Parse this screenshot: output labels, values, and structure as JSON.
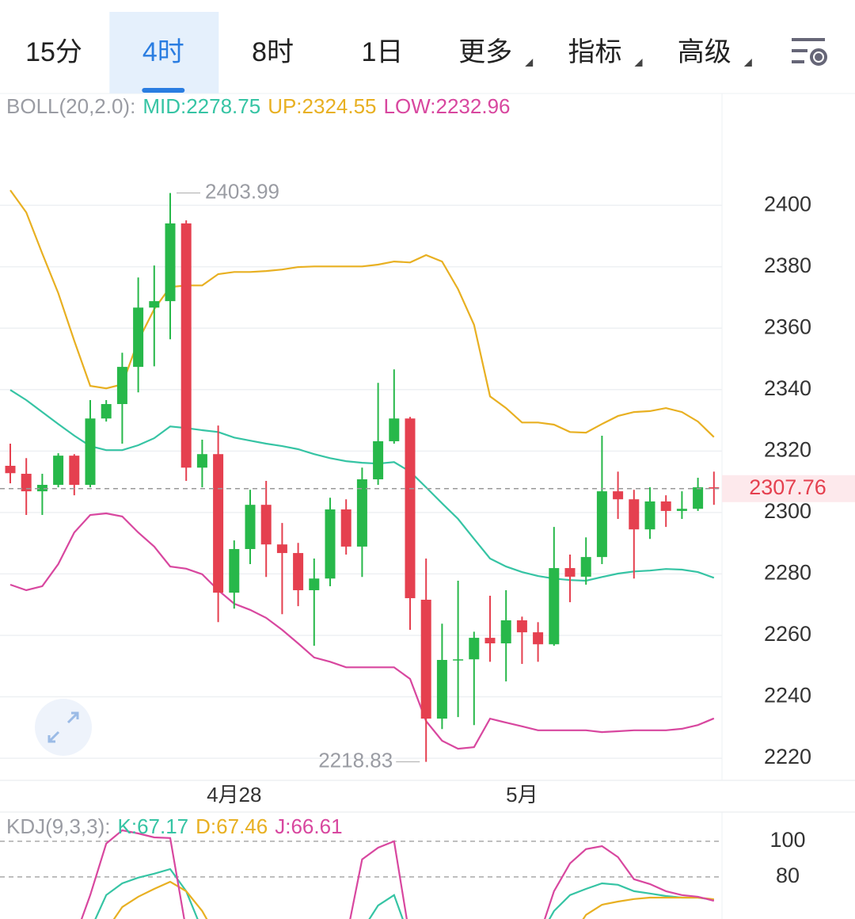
{
  "tabs": [
    {
      "label": "15分"
    },
    {
      "label": "4时"
    },
    {
      "label": "8时"
    },
    {
      "label": "1日"
    },
    {
      "label": "更多",
      "menu": true
    },
    {
      "label": "指标",
      "menu": true
    },
    {
      "label": "高级",
      "menu": true
    }
  ],
  "active_tab": 1,
  "chart_data": [
    {
      "type": "candlestick",
      "title": "BOLL(20,2.0):",
      "categories": [
        null,
        null,
        null,
        null,
        null,
        null,
        null,
        null,
        null,
        null,
        null,
        null,
        null,
        null,
        "4月28",
        null,
        null,
        null,
        null,
        null,
        null,
        null,
        null,
        null,
        null,
        null,
        null,
        null,
        null,
        null,
        null,
        null,
        "5月",
        null,
        null,
        null,
        null,
        null,
        null,
        null,
        null,
        null,
        null,
        null,
        null
      ],
      "up_color": "#27b84a",
      "down_color": "#e5404f",
      "candles": {
        "open": [
          2315.2,
          2312.6,
          2306.9,
          2309.0,
          2318.5,
          2309.0,
          2330.6,
          2335.3,
          2347.4,
          2366.7,
          2368.8,
          2394.1,
          2314.6,
          2319.0,
          2273.9,
          2288.1,
          2302.5,
          2289.6,
          2286.8,
          2274.7,
          2278.5,
          2301.0,
          2288.9,
          2310.8,
          2323.2,
          2330.6,
          2271.6,
          2232.9,
          2252.0,
          2252.2,
          2259.2,
          2257.4,
          2264.9,
          2261.0,
          2257.1,
          2281.9,
          2279.1,
          2285.5,
          2306.9,
          2304.3,
          2294.5,
          2303.6,
          2300.5,
          2301.2,
          2308.2
        ],
        "high": [
          2322.4,
          2317.7,
          2312.6,
          2319.3,
          2319.0,
          2336.6,
          2336.6,
          2352.0,
          2376.5,
          2380.4,
          2403.99,
          2395.1,
          2323.7,
          2328.3,
          2290.9,
          2307.4,
          2310.3,
          2296.6,
          2290.1,
          2285.0,
          2304.8,
          2304.3,
          2314.6,
          2342.2,
          2346.6,
          2331.1,
          2285.0,
          2263.8,
          2277.8,
          2261.2,
          2272.9,
          2274.7,
          2266.1,
          2264.3,
          2295.3,
          2286.3,
          2291.9,
          2325.0,
          2313.3,
          2307.4,
          2308.2,
          2305.6,
          2306.9,
          2311.3,
          2313.3
        ],
        "low": [
          2309.5,
          2299.2,
          2299.2,
          2308.2,
          2305.6,
          2308.2,
          2329.6,
          2322.4,
          2339.1,
          2347.6,
          2356.4,
          2310.3,
          2308.2,
          2264.3,
          2268.7,
          2283.2,
          2279.0,
          2266.9,
          2269.5,
          2256.6,
          2276.0,
          2286.3,
          2279.0,
          2309.0,
          2322.4,
          2261.8,
          2218.83,
          2229.5,
          2233.4,
          2230.8,
          2251.4,
          2245.0,
          2250.7,
          2251.4,
          2256.6,
          2270.8,
          2276.5,
          2283.2,
          2297.9,
          2278.5,
          2291.4,
          2295.3,
          2297.9,
          2300.5,
          2302.5
        ],
        "close": [
          2312.8,
          2306.9,
          2309.0,
          2318.5,
          2309.0,
          2330.6,
          2335.3,
          2347.4,
          2366.7,
          2368.8,
          2394.1,
          2314.6,
          2319.0,
          2273.9,
          2288.1,
          2302.5,
          2289.6,
          2286.8,
          2274.7,
          2278.5,
          2301.0,
          2288.9,
          2310.8,
          2323.2,
          2330.6,
          2272.1,
          2232.9,
          2252.0,
          2252.2,
          2259.2,
          2257.4,
          2264.9,
          2261.0,
          2257.1,
          2281.9,
          2279.1,
          2285.5,
          2306.9,
          2304.3,
          2294.5,
          2303.6,
          2300.5,
          2301.2,
          2308.2,
          2307.76
        ]
      },
      "series": [
        {
          "name": "MID:",
          "color": "#36c4a4",
          "values": [
            2339.9,
            2336.6,
            2332.7,
            2328.8,
            2325.0,
            2321.6,
            2320.3,
            2320.3,
            2321.9,
            2324.2,
            2328.0,
            2327.5,
            2326.8,
            2326.2,
            2324.4,
            2323.4,
            2322.4,
            2321.6,
            2320.6,
            2319.0,
            2317.7,
            2316.7,
            2316.2,
            2315.9,
            2316.4,
            2313.3,
            2308.2,
            2303.0,
            2297.9,
            2291.4,
            2285.0,
            2282.4,
            2280.6,
            2279.3,
            2278.5,
            2278.0,
            2277.8,
            2279.0,
            2280.1,
            2280.8,
            2281.1,
            2281.6,
            2281.4,
            2280.6,
            2278.75
          ]
        },
        {
          "name": "UP:",
          "color": "#e8b022",
          "values": [
            2404.9,
            2397.7,
            2384.3,
            2371.4,
            2355.9,
            2341.2,
            2340.4,
            2341.7,
            2355.9,
            2366.2,
            2373.4,
            2373.9,
            2373.9,
            2377.6,
            2378.3,
            2378.3,
            2378.6,
            2379.1,
            2379.9,
            2380.1,
            2380.1,
            2380.1,
            2380.1,
            2380.7,
            2381.7,
            2381.4,
            2383.8,
            2381.7,
            2372.7,
            2361.1,
            2337.8,
            2334.0,
            2329.3,
            2329.3,
            2328.6,
            2326.2,
            2326.0,
            2328.8,
            2331.4,
            2332.7,
            2333.0,
            2334.0,
            2332.7,
            2329.6,
            2324.55
          ]
        },
        {
          "name": "LOW:",
          "color": "#d8479f",
          "values": [
            2276.5,
            2274.7,
            2276.0,
            2283.2,
            2293.5,
            2299.2,
            2299.7,
            2298.7,
            2293.5,
            2288.9,
            2282.4,
            2281.7,
            2279.9,
            2274.7,
            2270.3,
            2268.3,
            2265.7,
            2261.8,
            2257.4,
            2252.8,
            2251.4,
            2249.6,
            2249.6,
            2249.6,
            2249.6,
            2245.8,
            2232.1,
            2225.7,
            2223.1,
            2223.6,
            2232.9,
            2231.6,
            2230.4,
            2229.1,
            2229.1,
            2229.1,
            2229.1,
            2228.5,
            2228.8,
            2229.1,
            2229.1,
            2229.1,
            2229.6,
            2230.8,
            2232.96
          ]
        }
      ],
      "ylim": [
        2212.8,
        2436.4
      ],
      "yticks": [
        2220,
        2240,
        2260,
        2280,
        2300,
        2320,
        2340,
        2360,
        2380,
        2400
      ],
      "grid": true
    },
    {
      "type": "line",
      "title": "KDJ(9,3,3):",
      "series": [
        {
          "name": "K:",
          "color": "#36c4a4",
          "values": [
            null,
            null,
            null,
            null,
            null,
            50,
            69.8,
            76.4,
            79.6,
            81.8,
            84.4,
            72,
            50,
            null,
            null,
            null,
            null,
            null,
            null,
            null,
            null,
            null,
            50,
            64,
            69.8,
            45,
            null,
            null,
            null,
            null,
            null,
            null,
            null,
            45,
            60.9,
            69.8,
            73.3,
            76.4,
            75.6,
            72,
            70.7,
            69.3,
            68.4,
            68.4,
            67.17
          ]
        },
        {
          "name": "D:",
          "color": "#e8b022",
          "values": [
            null,
            null,
            null,
            null,
            null,
            null,
            50,
            63.1,
            68.9,
            73.3,
            77.3,
            72,
            60.9,
            45,
            null,
            null,
            null,
            null,
            null,
            null,
            null,
            null,
            null,
            null,
            null,
            null,
            null,
            null,
            null,
            null,
            null,
            null,
            null,
            null,
            null,
            45,
            58.7,
            64.4,
            66.2,
            67.6,
            68.4,
            68.4,
            68.4,
            68.4,
            67.46
          ]
        },
        {
          "name": "J:",
          "color": "#d8479f",
          "values": [
            null,
            null,
            null,
            null,
            45,
            69.8,
            98.7,
            106.2,
            104.4,
            102.2,
            101.8,
            50,
            null,
            null,
            null,
            null,
            null,
            null,
            null,
            null,
            null,
            45,
            89.8,
            96.4,
            100,
            45,
            null,
            null,
            null,
            null,
            null,
            null,
            null,
            45,
            72,
            87.6,
            95.6,
            97.3,
            91.1,
            78.7,
            76,
            72,
            69.8,
            68.9,
            66.61
          ]
        }
      ],
      "ylim": [
        56.4,
        116.4
      ],
      "yticks": [
        80,
        100
      ],
      "grid": true
    }
  ]
}
